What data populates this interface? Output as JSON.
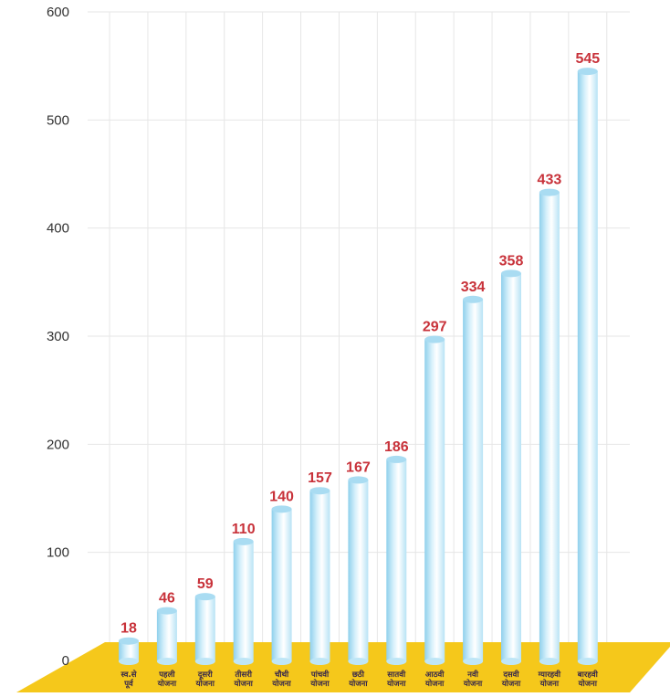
{
  "chart_data": {
    "type": "bar",
    "title": "",
    "xlabel": "",
    "ylabel": "",
    "ylim": [
      0,
      600
    ],
    "yticks": [
      0,
      100,
      200,
      300,
      400,
      500,
      600
    ],
    "grid": true,
    "categories": [
      [
        "स्व.से",
        "पूर्व"
      ],
      [
        "पहली",
        "योजना"
      ],
      [
        "दूसरी",
        "योजना"
      ],
      [
        "तीसरी",
        "योजना"
      ],
      [
        "चौथी",
        "योजना"
      ],
      [
        "पांचवी",
        "योजना"
      ],
      [
        "छठी",
        "योजना"
      ],
      [
        "सातवी",
        "योजना"
      ],
      [
        "आठवी",
        "योजना"
      ],
      [
        "नवी",
        "योजना"
      ],
      [
        "दसवी",
        "योजना"
      ],
      [
        "ग्यारहवी",
        "योजना"
      ],
      [
        "बारहवी",
        "योजना"
      ]
    ],
    "values": [
      18,
      46,
      59,
      110,
      140,
      157,
      167,
      186,
      297,
      334,
      358,
      433,
      545
    ],
    "bar_color": "#a9dcf2",
    "bar_highlight": "#e9f7fd",
    "label_color": "#c8323a",
    "floor_color": "#f5c81b"
  }
}
